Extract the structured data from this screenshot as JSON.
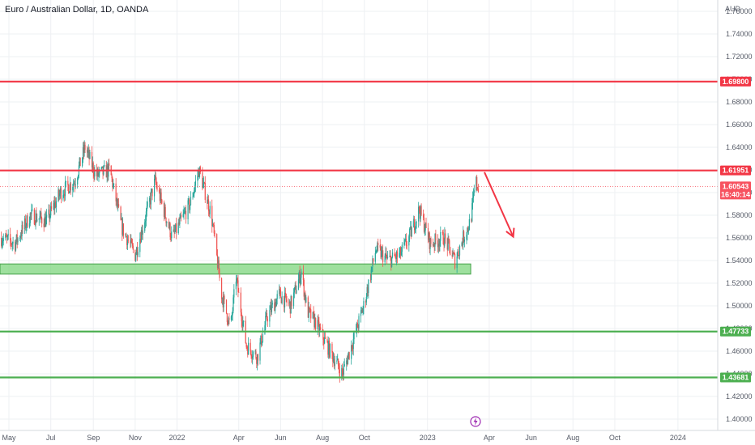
{
  "header": {
    "title": "Euro / Australian Dollar, 1D, OANDA"
  },
  "colors": {
    "up": "#26a69a",
    "down": "#ef5350",
    "resistance": "#f23645",
    "support": "#4caf50",
    "zone": "#7ed67e",
    "grid": "#eef0f3",
    "axis_text": "#555a66",
    "current": "#f7525f"
  },
  "chart_data": {
    "type": "candlestick",
    "title": "Euro / Australian Dollar, 1D, OANDA",
    "y_axis": {
      "unit": "AUD",
      "ylim": [
        1.39,
        1.77
      ],
      "ticks": [
        "1.40000",
        "1.42000",
        "1.44000",
        "1.46000",
        "1.48000",
        "1.50000",
        "1.52000",
        "1.54000",
        "1.56000",
        "1.58000",
        "1.60000",
        "1.62000",
        "1.64000",
        "1.66000",
        "1.68000",
        "1.70000",
        "1.72000",
        "1.74000",
        "1.76000"
      ],
      "position": "right"
    },
    "x_axis": {
      "range": [
        "2021-04-18",
        "2024-02-28"
      ],
      "ticks": [
        {
          "date": "2021-05-01",
          "label": "May"
        },
        {
          "date": "2021-07-01",
          "label": "Jul"
        },
        {
          "date": "2021-09-01",
          "label": "Sep"
        },
        {
          "date": "2021-11-01",
          "label": "Nov"
        },
        {
          "date": "2022-01-01",
          "label": "2022"
        },
        {
          "date": "2022-04-01",
          "label": "Apr"
        },
        {
          "date": "2022-06-01",
          "label": "Jun"
        },
        {
          "date": "2022-08-01",
          "label": "Aug"
        },
        {
          "date": "2022-10-01",
          "label": "Oct"
        },
        {
          "date": "2023-01-01",
          "label": "2023"
        },
        {
          "date": "2023-04-01",
          "label": "Apr"
        },
        {
          "date": "2023-06-01",
          "label": "Jun"
        },
        {
          "date": "2023-08-01",
          "label": "Aug"
        },
        {
          "date": "2023-10-01",
          "label": "Oct"
        },
        {
          "date": "2024-01-01",
          "label": "2024"
        }
      ]
    },
    "grid": true,
    "price_path": [
      {
        "date": "2021-04-20",
        "price": 1.56
      },
      {
        "date": "2021-05-10",
        "price": 1.555
      },
      {
        "date": "2021-06-01",
        "price": 1.58
      },
      {
        "date": "2021-06-25",
        "price": 1.575
      },
      {
        "date": "2021-07-15",
        "price": 1.6
      },
      {
        "date": "2021-08-05",
        "price": 1.61
      },
      {
        "date": "2021-08-20",
        "price": 1.64
      },
      {
        "date": "2021-09-05",
        "price": 1.615
      },
      {
        "date": "2021-09-25",
        "price": 1.62
      },
      {
        "date": "2021-10-12",
        "price": 1.57
      },
      {
        "date": "2021-11-01",
        "price": 1.545
      },
      {
        "date": "2021-11-30",
        "price": 1.61
      },
      {
        "date": "2021-12-25",
        "price": 1.56
      },
      {
        "date": "2022-01-20",
        "price": 1.59
      },
      {
        "date": "2022-02-02",
        "price": 1.62
      },
      {
        "date": "2022-02-20",
        "price": 1.58
      },
      {
        "date": "2022-03-07",
        "price": 1.51
      },
      {
        "date": "2022-03-20",
        "price": 1.48
      },
      {
        "date": "2022-03-28",
        "price": 1.525
      },
      {
        "date": "2022-04-12",
        "price": 1.465
      },
      {
        "date": "2022-04-28",
        "price": 1.455
      },
      {
        "date": "2022-05-12",
        "price": 1.49
      },
      {
        "date": "2022-05-30",
        "price": 1.51
      },
      {
        "date": "2022-06-15",
        "price": 1.5
      },
      {
        "date": "2022-07-01",
        "price": 1.53
      },
      {
        "date": "2022-07-10",
        "price": 1.495
      },
      {
        "date": "2022-07-22",
        "price": 1.485
      },
      {
        "date": "2022-08-12",
        "price": 1.46
      },
      {
        "date": "2022-08-30",
        "price": 1.44
      },
      {
        "date": "2022-09-15",
        "price": 1.47
      },
      {
        "date": "2022-09-30",
        "price": 1.5
      },
      {
        "date": "2022-10-18",
        "price": 1.55
      },
      {
        "date": "2022-11-05",
        "price": 1.54
      },
      {
        "date": "2022-11-22",
        "price": 1.545
      },
      {
        "date": "2022-12-05",
        "price": 1.56
      },
      {
        "date": "2022-12-20",
        "price": 1.585
      },
      {
        "date": "2023-01-05",
        "price": 1.555
      },
      {
        "date": "2023-01-25",
        "price": 1.56
      },
      {
        "date": "2023-02-10",
        "price": 1.54
      },
      {
        "date": "2023-02-22",
        "price": 1.56
      },
      {
        "date": "2023-03-05",
        "price": 1.575
      },
      {
        "date": "2023-03-12",
        "price": 1.61
      },
      {
        "date": "2023-03-16",
        "price": 1.605
      }
    ],
    "candle_wick_extremes": {
      "high": 1.6425,
      "low": 1.429
    },
    "levels": [
      {
        "kind": "resistance",
        "price": 1.698,
        "label": "1.69800",
        "start": "2021-04-18"
      },
      {
        "kind": "resistance",
        "price": 1.61951,
        "label": "1.61951",
        "start": "2021-04-18"
      },
      {
        "kind": "support",
        "price": 1.47733,
        "label": "1.47733",
        "start": "2021-04-18"
      },
      {
        "kind": "support",
        "price": 1.43681,
        "label": "1.43681",
        "start": "2021-04-18"
      }
    ],
    "zone": {
      "low": 1.528,
      "high": 1.537,
      "start": "2021-04-18",
      "end": "2023-03-05"
    },
    "current_price": {
      "value": 1.60543,
      "label": "1.60543",
      "countdown": "16:40:14"
    },
    "projection_arrow": {
      "from": {
        "date": "2023-03-25",
        "price": 1.618
      },
      "to": {
        "date": "2023-05-06",
        "price": 1.561
      }
    },
    "annotation_icon": {
      "date": "2023-03-12",
      "name": "lightning-icon"
    }
  }
}
